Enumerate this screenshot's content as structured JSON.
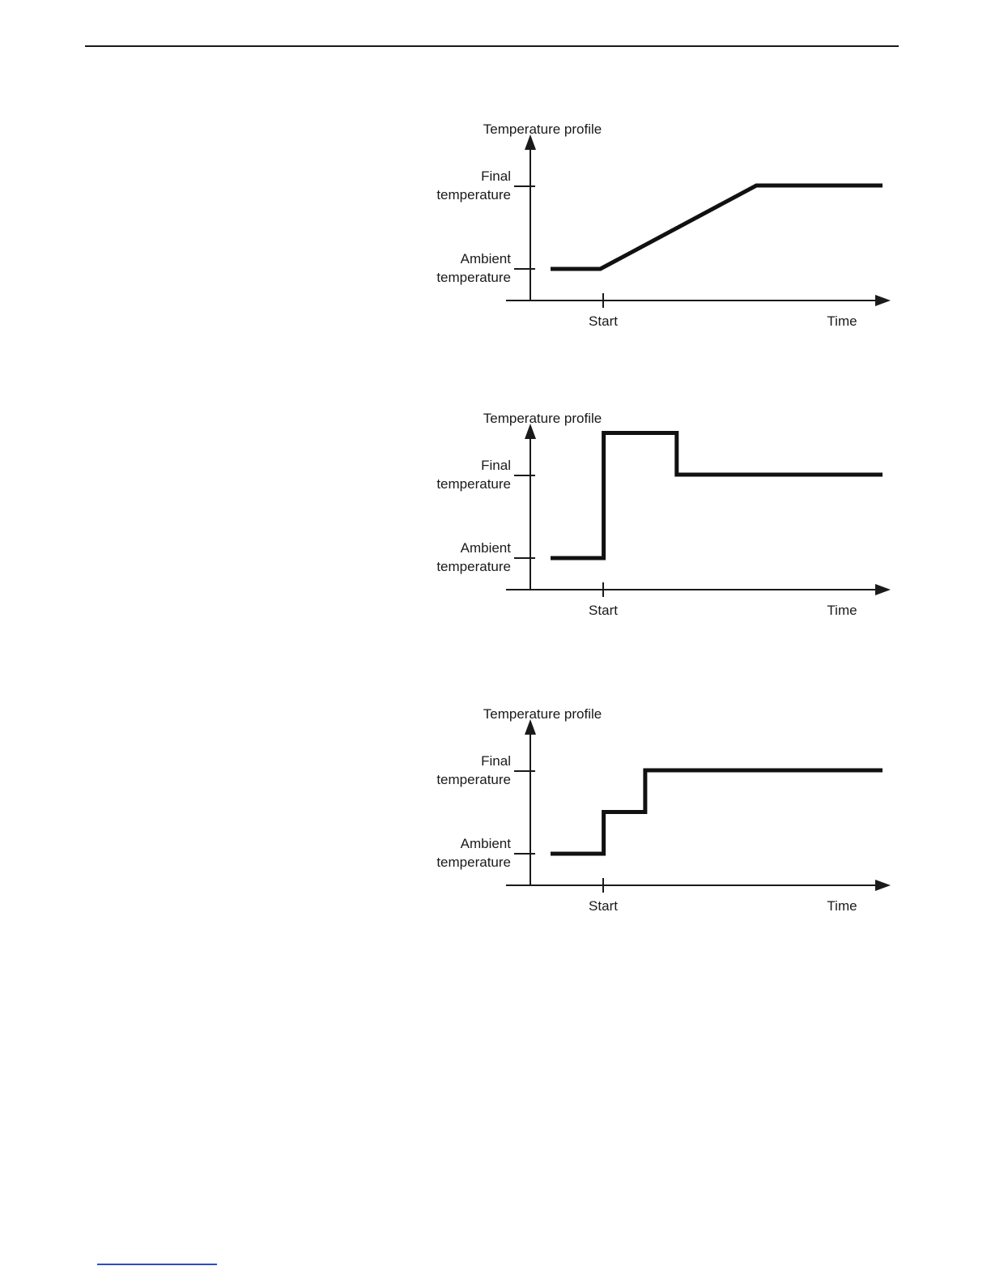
{
  "colors": {
    "ink": "#1a1a1a",
    "link_blue": "#2b4fc2"
  },
  "chart_data": [
    {
      "type": "line",
      "title": "Temperature profile",
      "xlabel": "Time",
      "x_tick_labels": [
        "Start"
      ],
      "y_tick_labels": [
        "Final temperature",
        "Ambient temperature"
      ],
      "shape": "linear ramp: holds at ambient until Start, ramps linearly up to final temperature, then holds",
      "y_scale_note": "0 = Ambient temperature, 1 = Final temperature",
      "points_norm": [
        [
          0,
          0
        ],
        [
          0.15,
          0
        ],
        [
          0.62,
          1
        ],
        [
          1,
          1
        ]
      ]
    },
    {
      "type": "line",
      "title": "Temperature profile",
      "xlabel": "Time",
      "x_tick_labels": [
        "Start"
      ],
      "y_tick_labels": [
        "Final temperature",
        "Ambient temperature"
      ],
      "shape": "step with overshoot: holds at ambient until Start, jumps above final temperature, then drops to final temperature and holds",
      "y_scale_note": "0 = Ambient temperature, 1 = Final temperature",
      "points_norm": [
        [
          0,
          0
        ],
        [
          0.16,
          0
        ],
        [
          0.16,
          1.5
        ],
        [
          0.38,
          1.5
        ],
        [
          0.38,
          1
        ],
        [
          1,
          1
        ]
      ]
    },
    {
      "type": "line",
      "title": "Temperature profile",
      "xlabel": "Time",
      "x_tick_labels": [
        "Start"
      ],
      "y_tick_labels": [
        "Final temperature",
        "Ambient temperature"
      ],
      "shape": "two-step staircase: holds at ambient until Start, steps to intermediate level, then steps to final temperature and holds",
      "y_scale_note": "0 = Ambient temperature, 1 = Final temperature",
      "points_norm": [
        [
          0,
          0
        ],
        [
          0.16,
          0
        ],
        [
          0.16,
          0.5
        ],
        [
          0.285,
          0.5
        ],
        [
          0.285,
          1
        ],
        [
          1,
          1
        ]
      ]
    }
  ]
}
